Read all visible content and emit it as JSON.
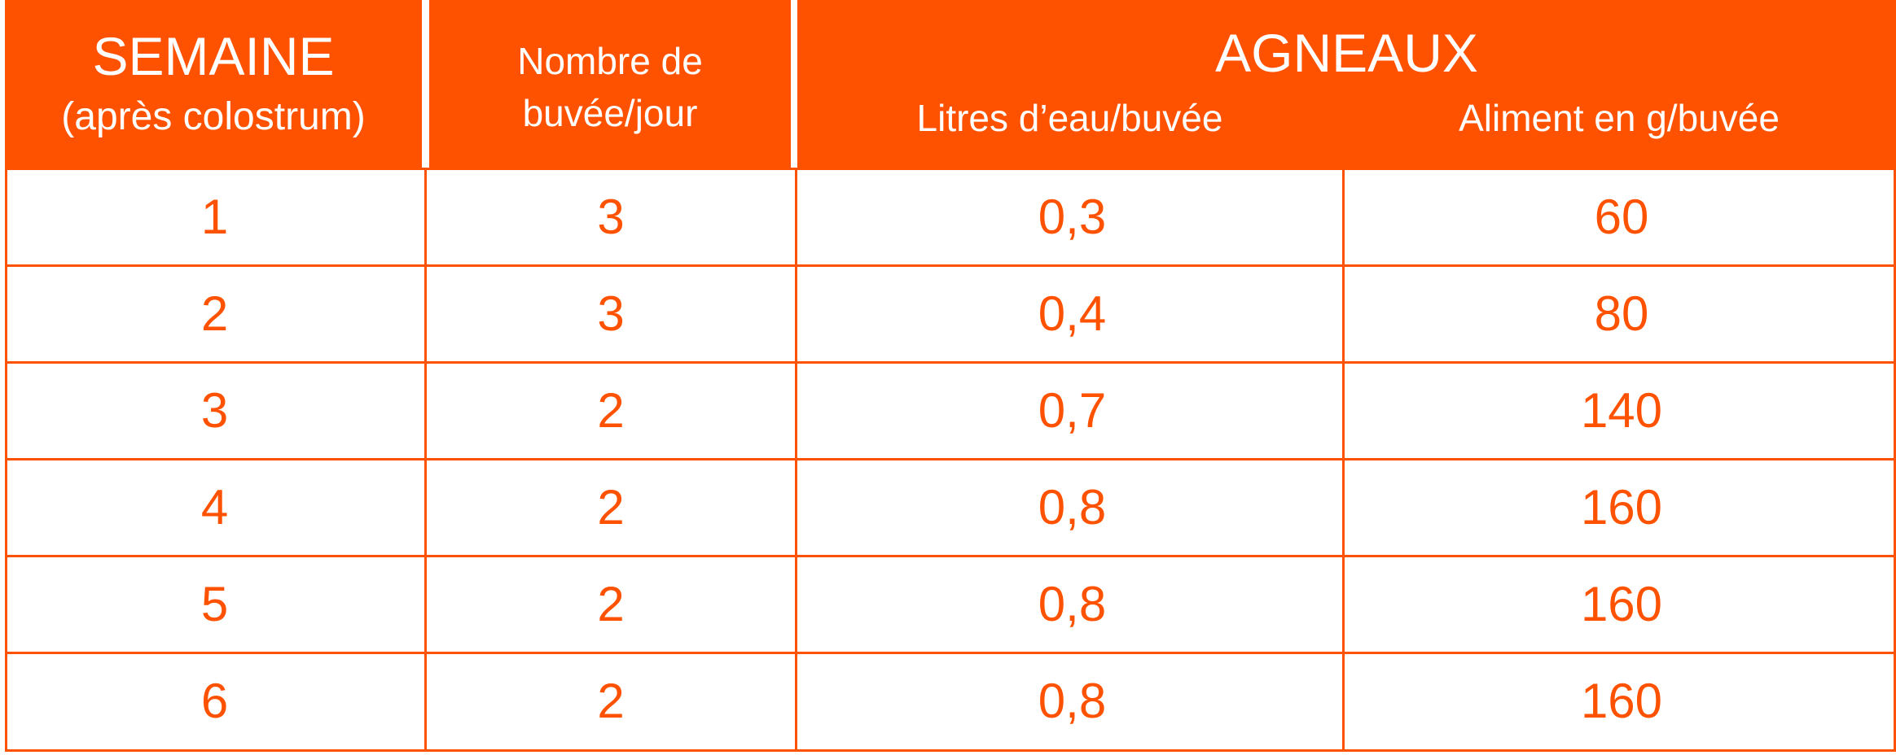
{
  "header": {
    "week_title": "SEMAINE",
    "week_subtitle": "(après colostrum)",
    "feeds_line1": "Nombre de",
    "feeds_line2": "buvée/jour",
    "lambs_title": "AGNEAUX",
    "water_label": "Litres d’eau/buvée",
    "feed_label": "Aliment en g/buvée"
  },
  "rows": [
    {
      "week": "1",
      "feeds": "3",
      "water": "0,3",
      "feed": "60"
    },
    {
      "week": "2",
      "feeds": "3",
      "water": "0,4",
      "feed": "80"
    },
    {
      "week": "3",
      "feeds": "2",
      "water": "0,7",
      "feed": "140"
    },
    {
      "week": "4",
      "feeds": "2",
      "water": "0,8",
      "feed": "160"
    },
    {
      "week": "5",
      "feeds": "2",
      "water": "0,8",
      "feed": "160"
    },
    {
      "week": "6",
      "feeds": "2",
      "water": "0,8",
      "feed": "160"
    }
  ],
  "colors": {
    "accent": "#ff5200",
    "header_text": "#ffffff"
  }
}
